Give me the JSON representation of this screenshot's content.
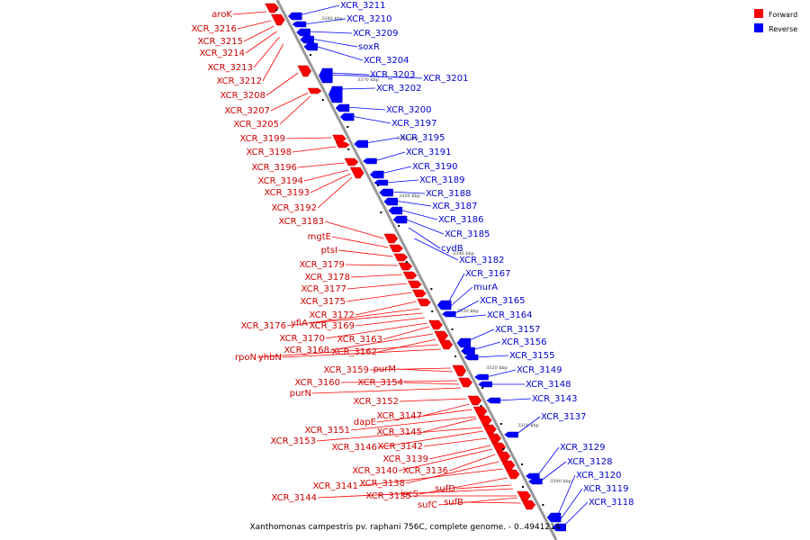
{
  "title": "Xanthomonas campestris pv. raphani 756C, complete genome. - 0..4941214",
  "colors": {
    "forward": "#ff0000",
    "reverse": "#0000ff",
    "backbone": "#999999"
  },
  "legend": [
    {
      "label": "Forward",
      "strand": "forward"
    },
    {
      "label": "Reverse",
      "strand": "reverse"
    }
  ],
  "axis_ticks": [
    "3380 kbp",
    "3370 kbp",
    "3360 kbp",
    "3350 kbp",
    "3340 kbp",
    "3330 kbp",
    "3320 kbp",
    "3310 kbp",
    "3300 kbp"
  ],
  "forward_labels": [
    "aroK",
    "XCR_3216",
    "XCR_3215",
    "XCR_3214",
    "XCR_3213",
    "XCR_3212",
    "XCR_3208",
    "XCR_3207",
    "XCR_3205",
    "XCR_3199",
    "XCR_3198",
    "XCR_3196",
    "XCR_3194",
    "XCR_3193",
    "XCR_3192",
    "XCR_3183",
    "mgtE",
    "ptsI",
    "XCR_3179",
    "XCR_3178",
    "XCR_3177",
    "XCR_3175",
    "XCR_3172",
    "XCR_3176",
    "yfiA",
    "XCR_3169",
    "XCR_3170",
    "XCR_3163",
    "XCR_3168",
    "XCR_3162",
    "rpoN",
    "yhbN",
    "XCR_3159",
    "purM",
    "XCR_3160",
    "XCR_3154",
    "purN",
    "XCR_3152",
    "dapE",
    "XCR_3147",
    "XCR_3151",
    "XCR_3145",
    "XCR_3153",
    "XCR_3146",
    "XCR_3142",
    "XCR_3139",
    "XCR_3140",
    "XCR_3136",
    "XCR_3138",
    "XCR_3141",
    "iscS",
    "sufD",
    "XCR_3144",
    "XCR_3135",
    "sufC",
    "sufB"
  ],
  "reverse_labels": [
    "XCR_3211",
    "XCR_3210",
    "XCR_3209",
    "soxR",
    "XCR_3204",
    "XCR_3203",
    "XCR_3201",
    "XCR_3202",
    "XCR_3200",
    "XCR_3197",
    "XCR_3195",
    "XCR_3191",
    "XCR_3190",
    "XCR_3189",
    "XCR_3188",
    "XCR_3187",
    "XCR_3186",
    "XCR_3185",
    "cydB",
    "XCR_3182",
    "XCR_3167",
    "murA",
    "XCR_3165",
    "XCR_3164",
    "XCR_3157",
    "XCR_3156",
    "XCR_3155",
    "XCR_3149",
    "XCR_3148",
    "XCR_3143",
    "XCR_3137",
    "XCR_3129",
    "XCR_3128",
    "XCR_3120",
    "XCR_3119",
    "XCR_3118"
  ]
}
